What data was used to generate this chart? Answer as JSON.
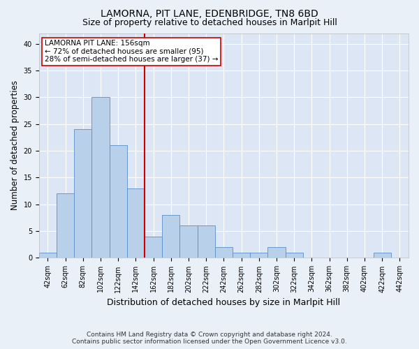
{
  "title": "LAMORNA, PIT LANE, EDENBRIDGE, TN8 6BD",
  "subtitle": "Size of property relative to detached houses in Marlpit Hill",
  "xlabel": "Distribution of detached houses by size in Marlpit Hill",
  "ylabel": "Number of detached properties",
  "footer_line1": "Contains HM Land Registry data © Crown copyright and database right 2024.",
  "footer_line2": "Contains public sector information licensed under the Open Government Licence v3.0.",
  "bin_labels": [
    "42sqm",
    "62sqm",
    "82sqm",
    "102sqm",
    "122sqm",
    "142sqm",
    "162sqm",
    "182sqm",
    "202sqm",
    "222sqm",
    "242sqm",
    "262sqm",
    "282sqm",
    "302sqm",
    "322sqm",
    "342sqm",
    "362sqm",
    "382sqm",
    "402sqm",
    "422sqm",
    "442sqm"
  ],
  "bar_values": [
    1,
    12,
    24,
    30,
    21,
    13,
    4,
    8,
    6,
    6,
    2,
    1,
    1,
    2,
    1,
    0,
    0,
    0,
    0,
    1,
    0
  ],
  "bar_color": "#b8d0ea",
  "bar_edge_color": "#5b8ec4",
  "vline_color": "#cc0000",
  "annotation_box_color": "#cc0000",
  "annotation_box_fill": "#ffffff",
  "annotation_line1": "LAMORNA PIT LANE: 156sqm",
  "annotation_line2": "← 72% of detached houses are smaller (95)",
  "annotation_line3": "28% of semi-detached houses are larger (37) →",
  "ylim": [
    0,
    42
  ],
  "yticks": [
    0,
    5,
    10,
    15,
    20,
    25,
    30,
    35,
    40
  ],
  "bg_color": "#dce6f5",
  "fig_bg_color": "#eaf0f8",
  "grid_color": "#ffffff",
  "title_fontsize": 10,
  "subtitle_fontsize": 9,
  "xlabel_fontsize": 9,
  "ylabel_fontsize": 8.5,
  "tick_fontsize": 7,
  "footer_fontsize": 6.5,
  "ann_fontsize": 7.5
}
